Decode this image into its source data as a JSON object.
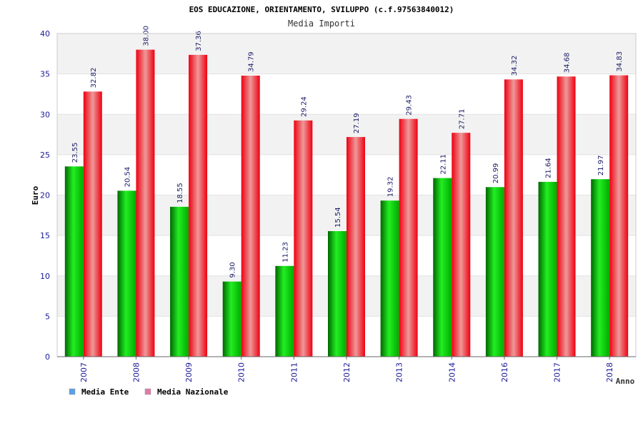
{
  "chart_data": {
    "type": "bar",
    "title": "EOS EDUCAZIONE, ORIENTAMENTO, SVILUPPO (c.f.97563840012)",
    "subtitle": "Media Importi",
    "ylabel": "Euro",
    "xlabel": "Anno",
    "ylim": [
      0,
      40
    ],
    "yticks": [
      0,
      5,
      10,
      15,
      20,
      25,
      30,
      35,
      40
    ],
    "grid": true,
    "legend_position": "bottom-left",
    "categories": [
      "2007",
      "2008",
      "2009",
      "2010",
      "2011",
      "2012",
      "2013",
      "2014",
      "2016",
      "2017",
      "2018"
    ],
    "series": [
      {
        "name": "Media Ente",
        "legend_color": "#5aa0e6",
        "bar_color": "#00aa00",
        "values": [
          23.55,
          20.54,
          18.55,
          9.3,
          11.23,
          15.54,
          19.32,
          22.11,
          20.99,
          21.64,
          21.97
        ],
        "labels": [
          "23.55",
          "20.54",
          "18.55",
          "9.30",
          "11.23",
          "15.54",
          "19.32",
          "22.11",
          "20.99",
          "21.64",
          "21.97"
        ]
      },
      {
        "name": "Media Nazionale",
        "legend_color": "#e07aa6",
        "bar_color": "#ee1122",
        "values": [
          32.82,
          38.0,
          37.36,
          34.79,
          29.24,
          27.19,
          29.43,
          27.71,
          34.32,
          34.68,
          34.83
        ],
        "labels": [
          "32.82",
          "38.00",
          "37.36",
          "34.79",
          "29.24",
          "27.19",
          "29.43",
          "27.71",
          "34.32",
          "34.68",
          "34.83"
        ]
      }
    ]
  }
}
